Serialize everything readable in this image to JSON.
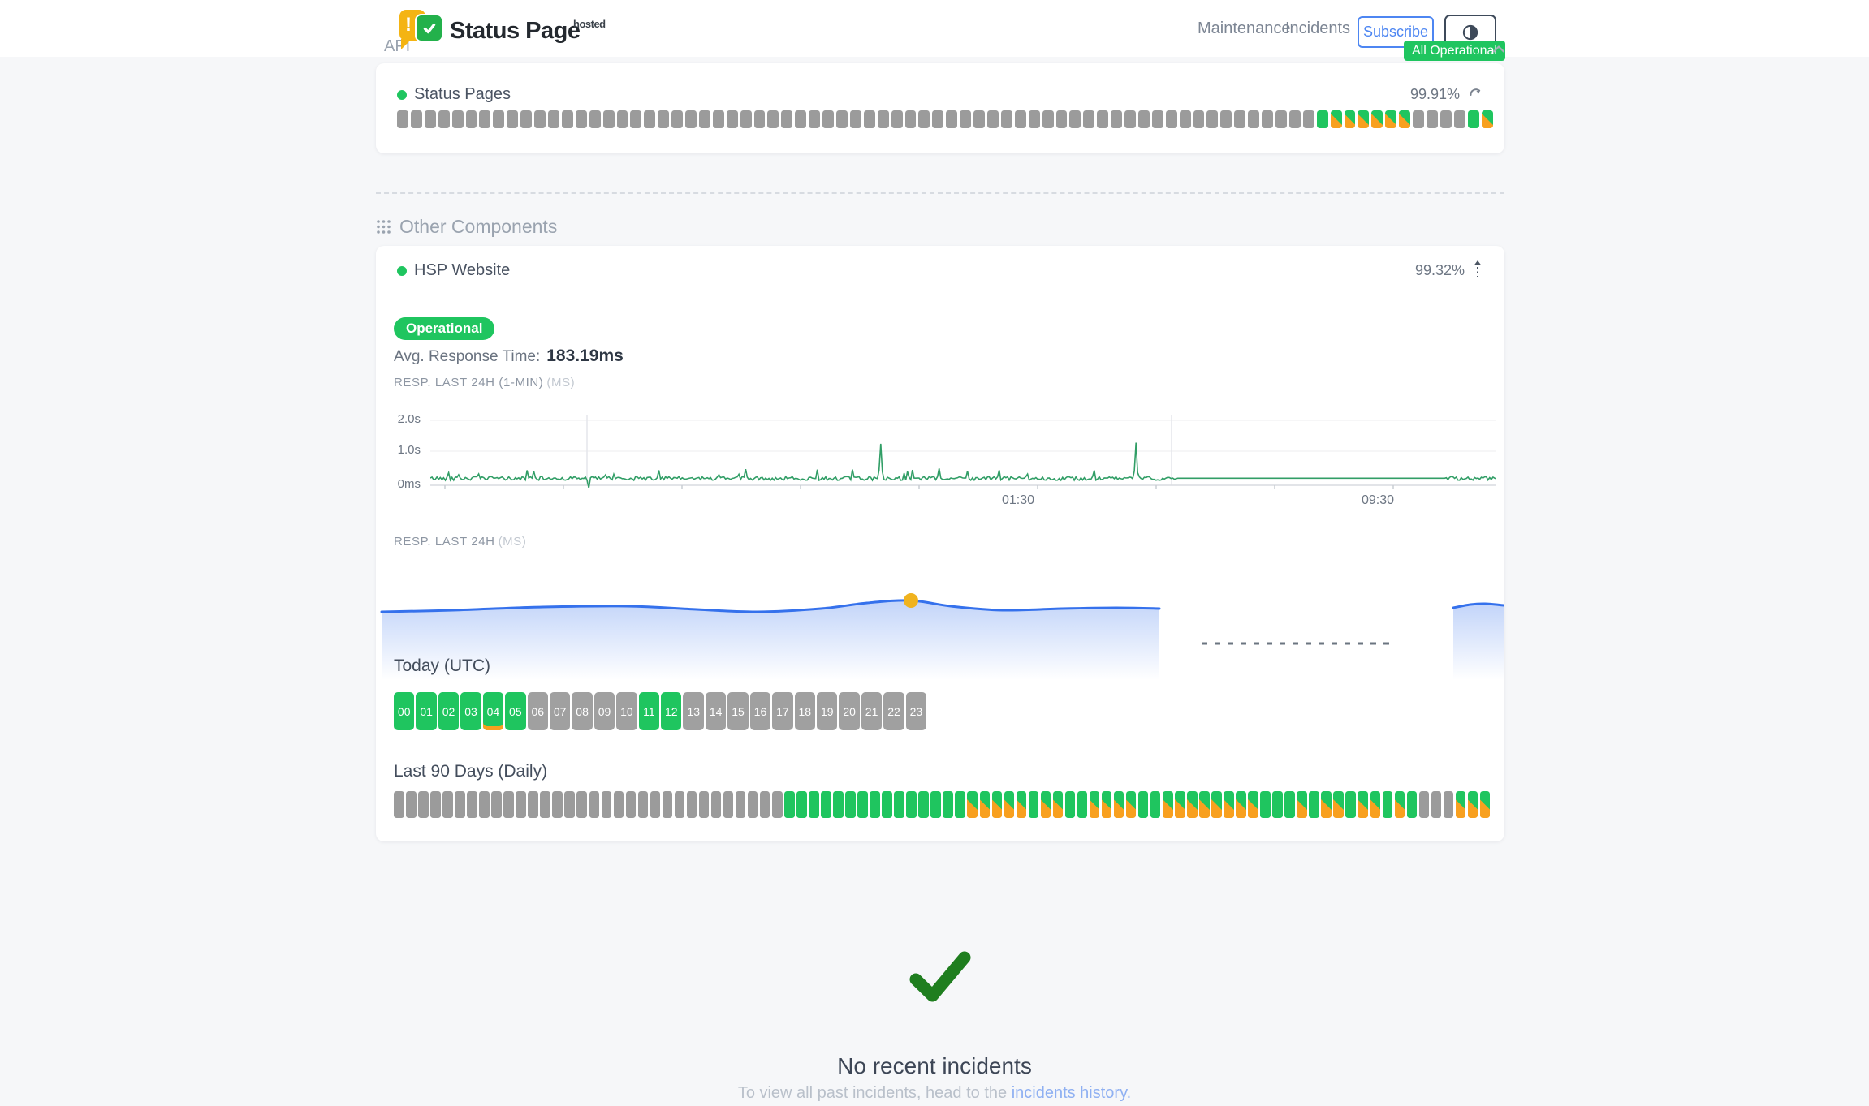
{
  "colors": {
    "green": "#1fc55f",
    "orange": "#f8a01f",
    "gray_bar": "#9b9b9b",
    "hour_gray": "#a0a0a0",
    "chart_green": "#319e66",
    "blue": "#3571ec",
    "marker_yellow": "#f0b31f",
    "subscribe_blue": "#4d86f2",
    "link_blue": "#8fb0f2",
    "check_green": "#1f7e1f"
  },
  "header": {
    "brand": "Status Page",
    "hosted": "hosted",
    "nav": [
      {
        "label": "Maintenance"
      },
      {
        "label": "Incidents"
      }
    ],
    "subscribe_label": "Subscribe",
    "overall_status": "All Operational"
  },
  "api_section": {
    "label": "API",
    "component_name": "Status Pages",
    "uptime": "99.91%",
    "bars": "nnnnnnnnnnnnnnnnnnnnnnnnnnnnnnnnnnnnnnnnnnnnnnnnnnnnnnnnnnnnnnnnnnnoddddddnnnnod"
  },
  "other_section": {
    "title": "Other Components",
    "component_name": "HSP Website",
    "uptime": "99.32%",
    "status_badge": "Operational",
    "avg_label": "Avg. Response Time:",
    "avg_value": "183.19ms"
  },
  "charts": {
    "minute": {
      "title": "RESP. LAST 24H (1-MIN)",
      "unit": "(MS)",
      "y_ticks": [
        "2.0s",
        "1.0s",
        "0ms"
      ],
      "x_ticks": [
        "01:30",
        "09:30"
      ],
      "summary": "noisy line ≈150–300ms with two spikes to ≈1.2s; flat ≈200ms segment in later third"
    },
    "daily": {
      "title": "RESP. LAST 24H",
      "unit": "(MS)",
      "summary": "smooth blue area wave with yellow marker, gap, dashed no-data segment, short area at right edge"
    }
  },
  "today": {
    "title": "Today (UTC)",
    "hours": [
      {
        "label": "00",
        "status": "o"
      },
      {
        "label": "01",
        "status": "o"
      },
      {
        "label": "02",
        "status": "o"
      },
      {
        "label": "03",
        "status": "o"
      },
      {
        "label": "04",
        "status": "op"
      },
      {
        "label": "05",
        "status": "o"
      },
      {
        "label": "06",
        "status": "n"
      },
      {
        "label": "07",
        "status": "n"
      },
      {
        "label": "08",
        "status": "n"
      },
      {
        "label": "09",
        "status": "n"
      },
      {
        "label": "10",
        "status": "n"
      },
      {
        "label": "11",
        "status": "o"
      },
      {
        "label": "12",
        "status": "o"
      },
      {
        "label": "13",
        "status": "n"
      },
      {
        "label": "14",
        "status": "n"
      },
      {
        "label": "15",
        "status": "n"
      },
      {
        "label": "16",
        "status": "n"
      },
      {
        "label": "17",
        "status": "n"
      },
      {
        "label": "18",
        "status": "n"
      },
      {
        "label": "19",
        "status": "n"
      },
      {
        "label": "20",
        "status": "n"
      },
      {
        "label": "21",
        "status": "n"
      },
      {
        "label": "22",
        "status": "n"
      },
      {
        "label": "23",
        "status": "n"
      }
    ]
  },
  "last90": {
    "title": "Last 90 Days (Daily)",
    "days": "nnnnnnnnnnnnnnnnnnnnnnnnnnnnnnnnooooooooooooooodddddoddooddddooddddddddooododdoddodonnnddd"
  },
  "incidents": {
    "title": "No recent incidents",
    "text_prefix": "To view all past incidents, head to the ",
    "link_label": "incidents history."
  }
}
